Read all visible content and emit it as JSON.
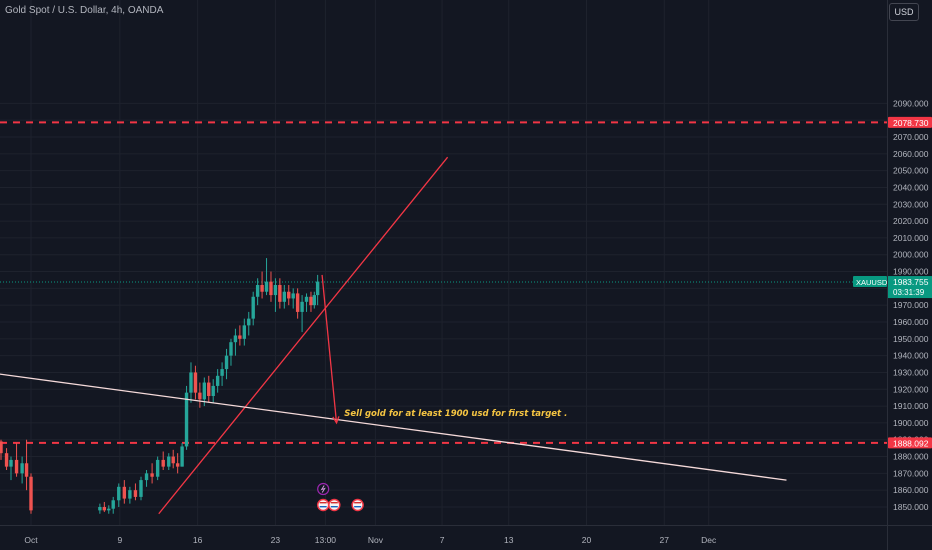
{
  "header": {
    "title": "Gold Spot / U.S. Dollar, 4h, OANDA",
    "currency_button": "USD"
  },
  "price_badges": {
    "symbol": "XAUUSD",
    "current_price": "1983.755",
    "countdown": "03:31:39",
    "level_top": "2078.730",
    "level_bottom": "1888.092"
  },
  "annotation_text": "Sell gold for at least 1900 usd for first target .",
  "colors": {
    "background": "#131722",
    "up": "#26a69a",
    "down": "#ef5350",
    "level_line": "#f23645",
    "trend_line": "#f23645",
    "support_line": "#f5dada",
    "note_text": "#f5c542",
    "current_price_badge": "#089981"
  },
  "chart_data": {
    "type": "candlestick",
    "symbol": "XAUUSD",
    "timeframe": "4h",
    "ylim": [
      1845,
      2095
    ],
    "yticks": [
      1850,
      1860,
      1870,
      1880,
      1890,
      1900,
      1910,
      1920,
      1930,
      1940,
      1950,
      1960,
      1970,
      1980,
      1990,
      2000,
      2010,
      2020,
      2030,
      2040,
      2050,
      2060,
      2070,
      2080,
      2090
    ],
    "ytick_labels": [
      "1850.000",
      "1860.000",
      "1870.000",
      "1880.000",
      "1890.000",
      "1900.000",
      "1910.000",
      "1920.000",
      "1930.000",
      "1940.000",
      "1950.000",
      "1960.000",
      "1970.000",
      "1980.000",
      "1990.000",
      "2000.000",
      "2010.000",
      "2020.000",
      "2030.000",
      "2040.000",
      "2050.000",
      "2060.000",
      "2070.000",
      "2080.000",
      "2090.000"
    ],
    "xaxis_labels": [
      {
        "label": "Oct",
        "day": 0
      },
      {
        "label": "9",
        "day": 8
      },
      {
        "label": "16",
        "day": 15
      },
      {
        "label": "23",
        "day": 22
      },
      {
        "label": "13:00",
        "day": 26.5
      },
      {
        "label": "Nov",
        "day": 31
      },
      {
        "label": "7",
        "day": 37
      },
      {
        "label": "13",
        "day": 43
      },
      {
        "label": "20",
        "day": 50
      },
      {
        "label": "27",
        "day": 57
      },
      {
        "label": "Dec",
        "day": 61
      }
    ],
    "horizontal_levels": [
      2078.73,
      1888.092
    ],
    "current_price": 1983.755,
    "trendlines": [
      {
        "from": [
          11.5,
          1846
        ],
        "to": [
          37.5,
          2058
        ]
      },
      {
        "from": [
          -2.8,
          1929
        ],
        "to": [
          68,
          1866
        ]
      },
      {
        "from": [
          26.2,
          1988
        ],
        "to": [
          27.5,
          1900
        ],
        "arrow": true
      }
    ],
    "annotation": {
      "text": "Sell gold for at least 1900 usd for first target .",
      "day": 28.2,
      "price": 1904
    },
    "event_markers_day": [
      26.3,
      26.3,
      27.3,
      29.4
    ],
    "candles": [
      {
        "day": -2.7,
        "o": 1889,
        "h": 1890,
        "l": 1878,
        "c": 1882
      },
      {
        "day": -2.2,
        "o": 1882,
        "h": 1885,
        "l": 1872,
        "c": 1874
      },
      {
        "day": -1.8,
        "o": 1874,
        "h": 1880,
        "l": 1866,
        "c": 1878
      },
      {
        "day": -1.3,
        "o": 1878,
        "h": 1888,
        "l": 1868,
        "c": 1870
      },
      {
        "day": -0.8,
        "o": 1870,
        "h": 1880,
        "l": 1864,
        "c": 1876
      },
      {
        "day": -0.4,
        "o": 1876,
        "h": 1890,
        "l": 1860,
        "c": 1868
      },
      {
        "day": 0.0,
        "o": 1868,
        "h": 1870,
        "l": 1846,
        "c": 1848
      },
      {
        "day": 6.2,
        "o": 1848,
        "h": 1852,
        "l": 1846,
        "c": 1850
      },
      {
        "day": 6.6,
        "o": 1850,
        "h": 1853,
        "l": 1847,
        "c": 1848
      },
      {
        "day": 7.0,
        "o": 1848,
        "h": 1851,
        "l": 1846,
        "c": 1849
      },
      {
        "day": 7.4,
        "o": 1849,
        "h": 1856,
        "l": 1846,
        "c": 1854
      },
      {
        "day": 7.9,
        "o": 1854,
        "h": 1864,
        "l": 1850,
        "c": 1862
      },
      {
        "day": 8.4,
        "o": 1862,
        "h": 1866,
        "l": 1852,
        "c": 1855
      },
      {
        "day": 8.9,
        "o": 1855,
        "h": 1862,
        "l": 1852,
        "c": 1860
      },
      {
        "day": 9.4,
        "o": 1860,
        "h": 1864,
        "l": 1854,
        "c": 1856
      },
      {
        "day": 9.9,
        "o": 1856,
        "h": 1868,
        "l": 1854,
        "c": 1866
      },
      {
        "day": 10.4,
        "o": 1866,
        "h": 1872,
        "l": 1862,
        "c": 1870
      },
      {
        "day": 10.9,
        "o": 1870,
        "h": 1876,
        "l": 1864,
        "c": 1868
      },
      {
        "day": 11.4,
        "o": 1868,
        "h": 1880,
        "l": 1866,
        "c": 1878
      },
      {
        "day": 11.9,
        "o": 1878,
        "h": 1883,
        "l": 1872,
        "c": 1874
      },
      {
        "day": 12.4,
        "o": 1874,
        "h": 1882,
        "l": 1872,
        "c": 1880
      },
      {
        "day": 12.8,
        "o": 1880,
        "h": 1884,
        "l": 1873,
        "c": 1876
      },
      {
        "day": 13.2,
        "o": 1876,
        "h": 1882,
        "l": 1870,
        "c": 1874
      },
      {
        "day": 13.6,
        "o": 1874,
        "h": 1888,
        "l": 1874,
        "c": 1886
      },
      {
        "day": 14.0,
        "o": 1886,
        "h": 1922,
        "l": 1884,
        "c": 1918
      },
      {
        "day": 14.4,
        "o": 1918,
        "h": 1936,
        "l": 1912,
        "c": 1930
      },
      {
        "day": 14.8,
        "o": 1930,
        "h": 1934,
        "l": 1914,
        "c": 1918
      },
      {
        "day": 15.2,
        "o": 1918,
        "h": 1924,
        "l": 1909,
        "c": 1914
      },
      {
        "day": 15.6,
        "o": 1914,
        "h": 1927,
        "l": 1910,
        "c": 1924
      },
      {
        "day": 16.0,
        "o": 1924,
        "h": 1928,
        "l": 1912,
        "c": 1916
      },
      {
        "day": 16.4,
        "o": 1916,
        "h": 1926,
        "l": 1912,
        "c": 1922
      },
      {
        "day": 16.8,
        "o": 1922,
        "h": 1932,
        "l": 1918,
        "c": 1928
      },
      {
        "day": 17.2,
        "o": 1928,
        "h": 1936,
        "l": 1922,
        "c": 1932
      },
      {
        "day": 17.6,
        "o": 1932,
        "h": 1944,
        "l": 1926,
        "c": 1940
      },
      {
        "day": 18.0,
        "o": 1940,
        "h": 1950,
        "l": 1934,
        "c": 1948
      },
      {
        "day": 18.4,
        "o": 1948,
        "h": 1956,
        "l": 1940,
        "c": 1952
      },
      {
        "day": 18.8,
        "o": 1952,
        "h": 1958,
        "l": 1946,
        "c": 1950
      },
      {
        "day": 19.2,
        "o": 1950,
        "h": 1962,
        "l": 1946,
        "c": 1958
      },
      {
        "day": 19.6,
        "o": 1958,
        "h": 1966,
        "l": 1952,
        "c": 1962
      },
      {
        "day": 20.0,
        "o": 1962,
        "h": 1978,
        "l": 1958,
        "c": 1975
      },
      {
        "day": 20.4,
        "o": 1975,
        "h": 1986,
        "l": 1970,
        "c": 1982
      },
      {
        "day": 20.8,
        "o": 1982,
        "h": 1990,
        "l": 1974,
        "c": 1978
      },
      {
        "day": 21.2,
        "o": 1978,
        "h": 1998,
        "l": 1976,
        "c": 1984
      },
      {
        "day": 21.6,
        "o": 1984,
        "h": 1990,
        "l": 1972,
        "c": 1976
      },
      {
        "day": 22.0,
        "o": 1976,
        "h": 1986,
        "l": 1966,
        "c": 1982
      },
      {
        "day": 22.4,
        "o": 1982,
        "h": 1986,
        "l": 1968,
        "c": 1972
      },
      {
        "day": 22.8,
        "o": 1972,
        "h": 1982,
        "l": 1968,
        "c": 1978
      },
      {
        "day": 23.2,
        "o": 1978,
        "h": 1982,
        "l": 1970,
        "c": 1974
      },
      {
        "day": 23.6,
        "o": 1974,
        "h": 1980,
        "l": 1968,
        "c": 1977
      },
      {
        "day": 24.0,
        "o": 1977,
        "h": 1980,
        "l": 1962,
        "c": 1966
      },
      {
        "day": 24.4,
        "o": 1966,
        "h": 1976,
        "l": 1954,
        "c": 1972
      },
      {
        "day": 24.8,
        "o": 1972,
        "h": 1977,
        "l": 1966,
        "c": 1975
      },
      {
        "day": 25.2,
        "o": 1975,
        "h": 1978,
        "l": 1966,
        "c": 1970
      },
      {
        "day": 25.5,
        "o": 1970,
        "h": 1978,
        "l": 1968,
        "c": 1976
      },
      {
        "day": 25.8,
        "o": 1976,
        "h": 1988,
        "l": 1970,
        "c": 1984
      }
    ]
  }
}
